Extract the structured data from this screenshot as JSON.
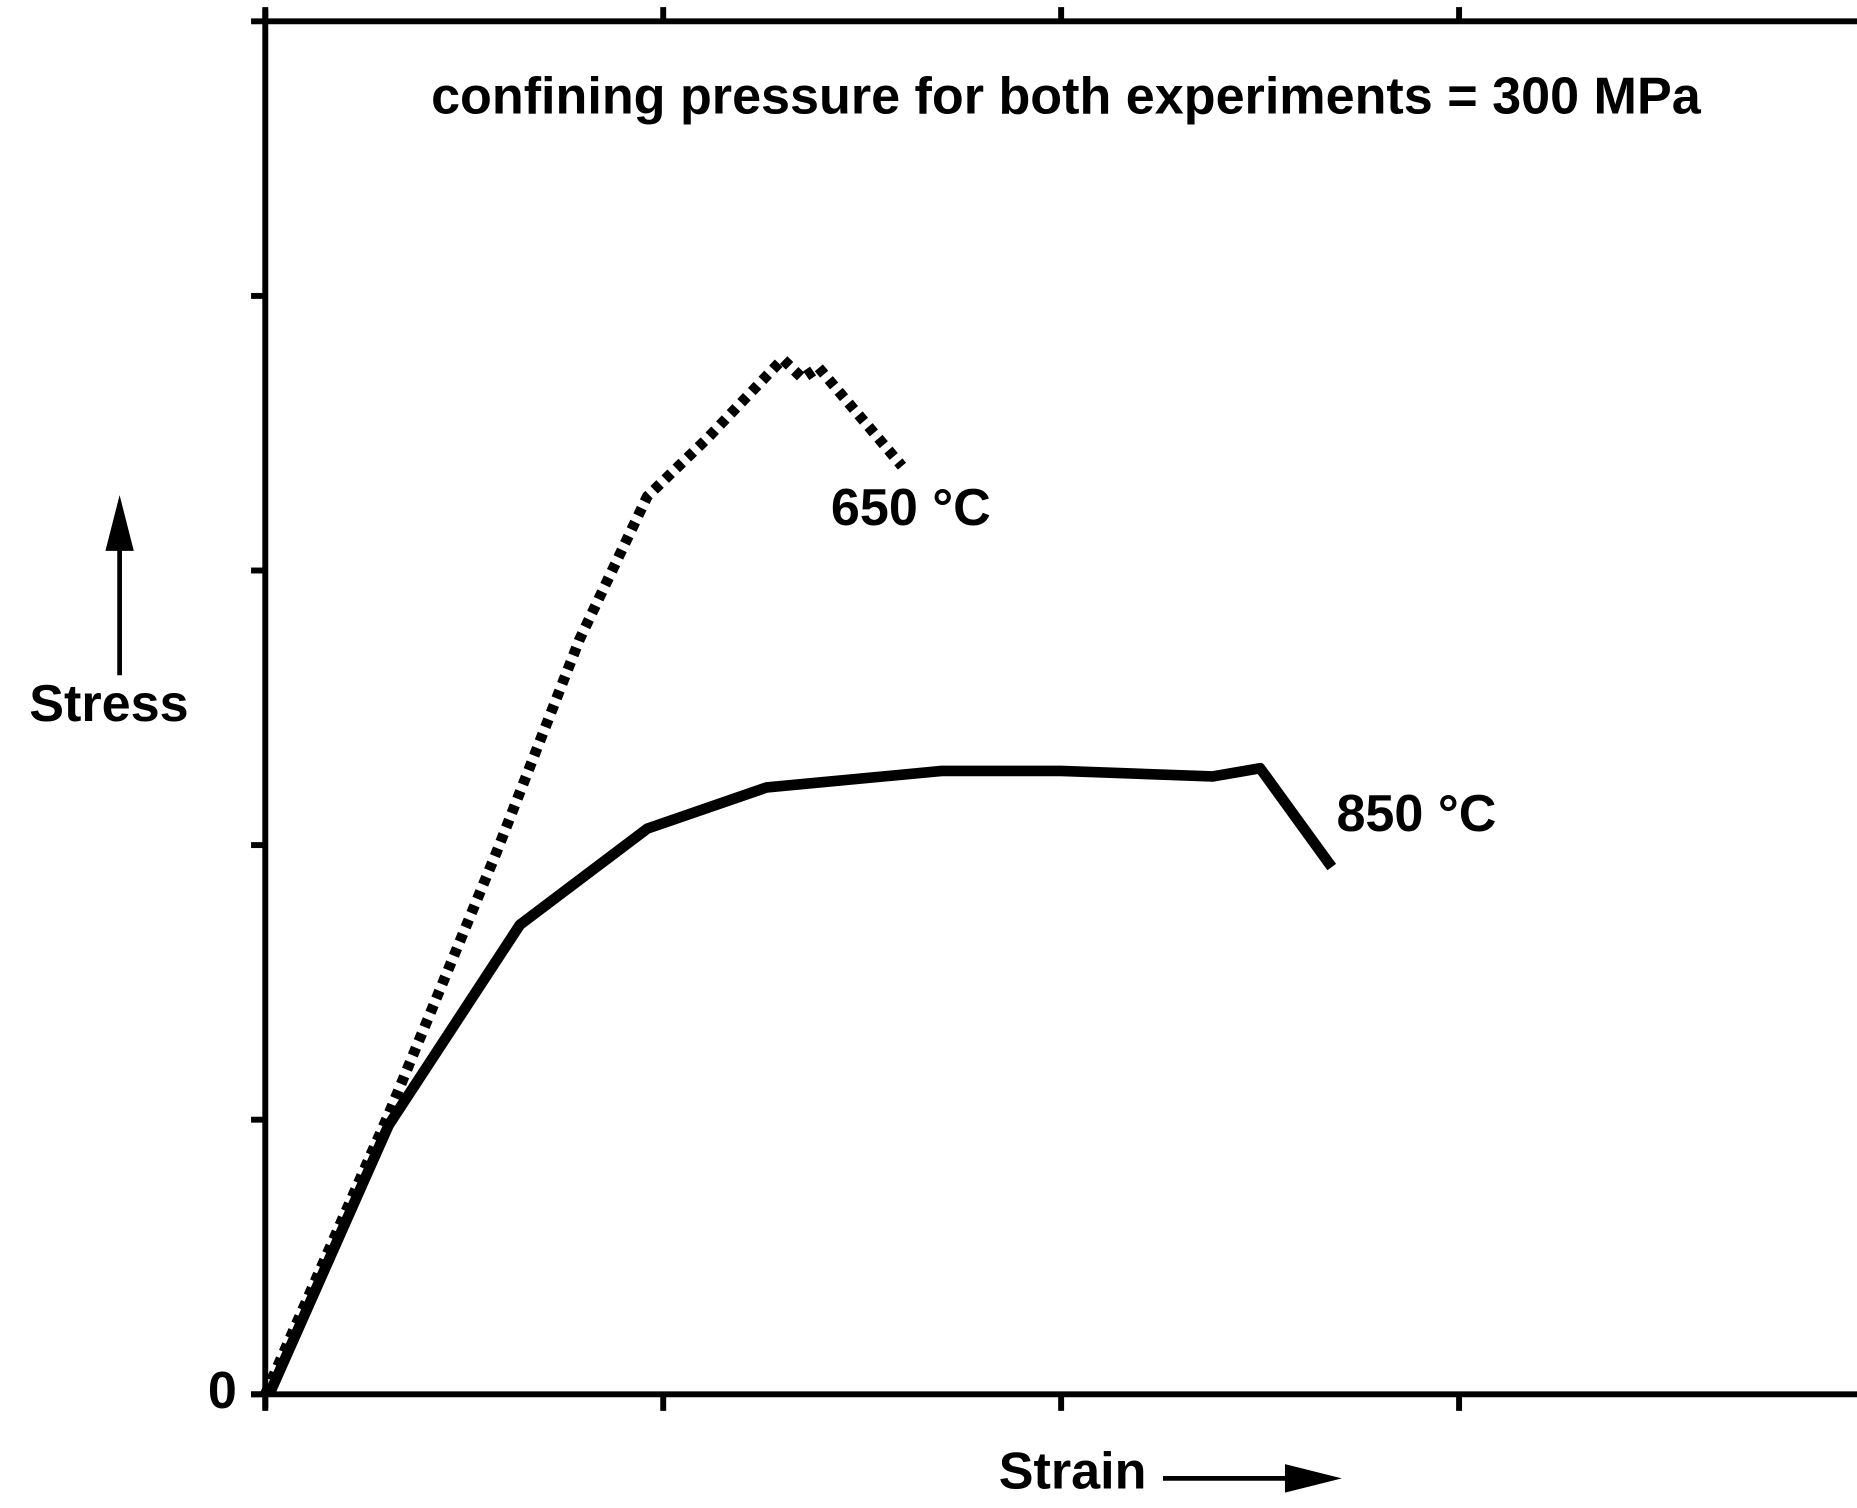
{
  "chart_data": {
    "type": "line",
    "title": "confining pressure for both experiments = 300 MPa",
    "xlabel": "Strain",
    "ylabel": "Stress",
    "xlim": [
      0,
      4
    ],
    "ylim": [
      0,
      5
    ],
    "xticks": [
      {
        "value": 0,
        "label": null
      },
      {
        "value": 1,
        "label": null
      },
      {
        "value": 2,
        "label": null
      },
      {
        "value": 3,
        "label": null
      }
    ],
    "yticks": [
      0,
      {
        "value": 1,
        "label": null
      },
      {
        "value": 2,
        "label": null
      },
      {
        "value": 3,
        "label": null
      },
      {
        "value": 4,
        "label": null
      }
    ],
    "series": [
      {
        "name": "650 °C",
        "color": "#000000",
        "style": "dotted",
        "x": [
          0,
          0.31,
          0.58,
          0.79,
          0.96,
          1.11,
          1.3,
          1.35,
          1.39,
          1.6
        ],
        "values": [
          0,
          1.02,
          1.97,
          2.75,
          3.27,
          3.48,
          3.77,
          3.7,
          3.74,
          3.38
        ]
      },
      {
        "name": "850 °C",
        "color": "#000000",
        "style": "solid",
        "x": [
          0.01,
          0.31,
          0.64,
          0.96,
          1.26,
          1.7,
          2.0,
          2.38,
          2.5,
          2.68
        ],
        "values": [
          0,
          0.98,
          1.71,
          2.06,
          2.21,
          2.27,
          2.27,
          2.25,
          2.28,
          1.92
        ]
      }
    ]
  }
}
